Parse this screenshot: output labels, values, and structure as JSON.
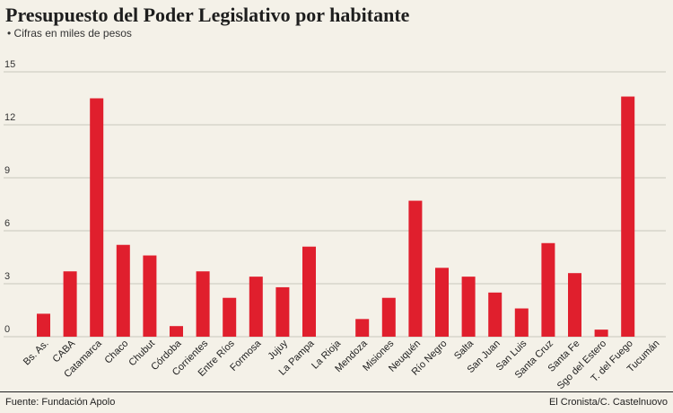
{
  "header": {
    "title": "Presupuesto del Poder Legislativo por habitante",
    "subtitle": "• Cifras en miles de pesos"
  },
  "footer": {
    "source": "Fuente: Fundación Apolo",
    "credit": "El Cronista/C. Castelnuovo"
  },
  "chart_data": {
    "type": "bar",
    "title": "Presupuesto del Poder Legislativo por habitante",
    "subtitle": "• Cifras en miles de pesos",
    "xlabel": "",
    "ylabel": "",
    "ylim": [
      0,
      15
    ],
    "yticks": [
      0,
      3,
      6,
      9,
      12,
      15
    ],
    "grid": true,
    "bar_color": "#e01f2d",
    "categories": [
      "Bs. As.",
      "CABA",
      "Catamarca",
      "Chaco",
      "Chubut",
      "Córdoba",
      "Corrientes",
      "Entre Ríos",
      "Formosa",
      "Jujuy",
      "La Pampa",
      "La Rioja",
      "Mendoza",
      "Misiones",
      "Neuquén",
      "Río Negro",
      "Salta",
      "San Juan",
      "San Luis",
      "Santa Cruz",
      "Santa Fe",
      "Sgo del Estero",
      "T. del Fuego",
      "Tucumán"
    ],
    "values": [
      1.3,
      3.7,
      13.5,
      5.2,
      4.6,
      0.6,
      3.7,
      2.2,
      3.4,
      2.8,
      5.1,
      0,
      1.0,
      2.2,
      7.7,
      3.9,
      3.4,
      2.5,
      1.6,
      5.3,
      3.6,
      0.4,
      13.6,
      0
    ]
  }
}
